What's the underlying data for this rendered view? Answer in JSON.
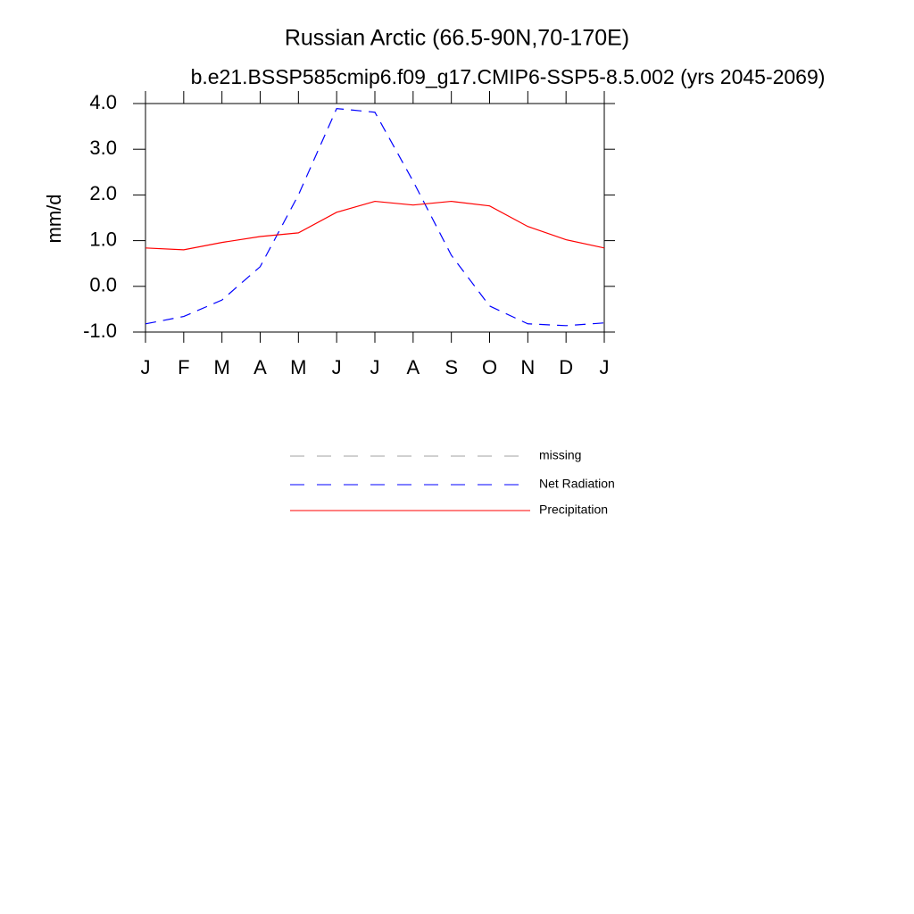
{
  "chart_data": {
    "type": "line",
    "title": "Russian Arctic (66.5-90N,70-170E)",
    "subtitle": "b.e21.BSSP585cmip6.f09_g17.CMIP6-SSP5-8.5.002 (yrs 2045-2069)",
    "y_label": "mm/d",
    "categories": [
      "J",
      "F",
      "M",
      "A",
      "M",
      "J",
      "J",
      "A",
      "S",
      "O",
      "N",
      "D",
      "J"
    ],
    "series": [
      {
        "name": "missing",
        "color": "#a0a0a0",
        "dash": true,
        "values": [
          null,
          null,
          null,
          null,
          null,
          null,
          null,
          null,
          null,
          null,
          null,
          null,
          null
        ]
      },
      {
        "name": "Net Radiation",
        "color": "#0000ff",
        "dash": true,
        "values": [
          -0.82,
          -0.66,
          -0.3,
          0.43,
          2.0,
          3.89,
          3.81,
          2.3,
          0.68,
          -0.43,
          -0.82,
          -0.86,
          -0.8
        ]
      },
      {
        "name": "Precipitation",
        "color": "#ff0000",
        "dash": false,
        "values": [
          0.84,
          0.8,
          0.96,
          1.09,
          1.17,
          1.62,
          1.86,
          1.78,
          1.86,
          1.76,
          1.31,
          1.02,
          0.84
        ]
      }
    ],
    "ylim": [
      -1,
      4
    ],
    "yticks": [
      {
        "value": -1,
        "label": "-1.0"
      },
      {
        "value": 0,
        "label": "0.0"
      },
      {
        "value": 1,
        "label": "1.0"
      },
      {
        "value": 2,
        "label": "2.0"
      },
      {
        "value": 3,
        "label": "3.0"
      },
      {
        "value": 4,
        "label": "4.0"
      }
    ]
  }
}
